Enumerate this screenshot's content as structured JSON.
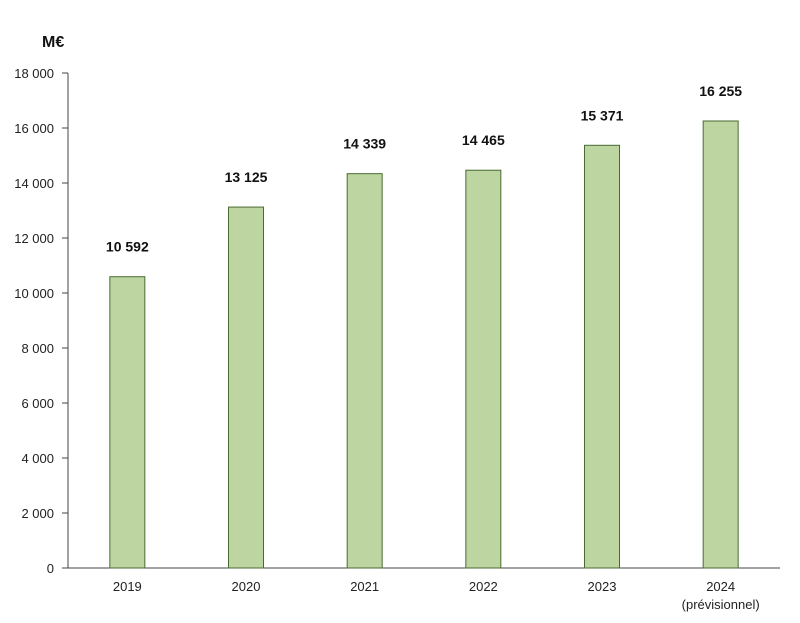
{
  "chart_data": {
    "type": "bar",
    "unit_label": "M€",
    "categories": [
      "2019",
      "2020",
      "2021",
      "2022",
      "2023",
      "2024"
    ],
    "category_sublabels": [
      "",
      "",
      "",
      "",
      "",
      "(prévisionnel)"
    ],
    "values": [
      10592,
      13125,
      14339,
      14465,
      15371,
      16255
    ],
    "value_labels": [
      "10 592",
      "13 125",
      "14 339",
      "14 465",
      "15 371",
      "16 255"
    ],
    "ylim": [
      0,
      18000
    ],
    "yticks": [
      0,
      2000,
      4000,
      6000,
      8000,
      10000,
      12000,
      14000,
      16000,
      18000
    ],
    "ytick_labels": [
      "0",
      "2 000",
      "4 000",
      "6 000",
      "8 000",
      "10 000",
      "12 000",
      "14 000",
      "16 000",
      "18 000"
    ],
    "grid": false,
    "colors": {
      "bar_fill": "#bcd5a1",
      "bar_stroke": "#4a6a32",
      "axis": "#444444"
    }
  }
}
